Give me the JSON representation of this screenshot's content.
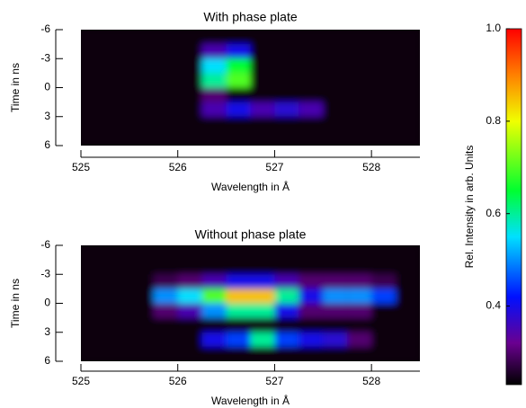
{
  "chart_data": [
    {
      "type": "heatmap",
      "title": "With phase plate",
      "x_label": "Wavelength in Å",
      "y_label": "Time in ns",
      "xlim": [
        525,
        528.5
      ],
      "xticks": [
        525,
        526,
        527,
        528
      ],
      "ylim": [
        -6,
        6
      ],
      "yticks": [
        -6,
        -3,
        0,
        3,
        6
      ],
      "x_bins": [
        525,
        525.25,
        525.5,
        525.75,
        526,
        526.25,
        526.5,
        526.75,
        527,
        527.25,
        527.5,
        527.75,
        528,
        528.25,
        528.5
      ],
      "y_bins": [
        -6,
        -4.5,
        -3,
        -1.5,
        0,
        1.5,
        3,
        4.5,
        6
      ],
      "values": [
        [
          0.24,
          0.24,
          0.24,
          0.24,
          0.24,
          0.24,
          0.24,
          0.24,
          0.24,
          0.24,
          0.24,
          0.24,
          0.24,
          0.24
        ],
        [
          0.24,
          0.24,
          0.24,
          0.24,
          0.24,
          0.35,
          0.4,
          0.24,
          0.24,
          0.24,
          0.24,
          0.24,
          0.24,
          0.24
        ],
        [
          0.24,
          0.24,
          0.24,
          0.24,
          0.24,
          0.55,
          0.65,
          0.24,
          0.24,
          0.24,
          0.24,
          0.24,
          0.24,
          0.24
        ],
        [
          0.24,
          0.24,
          0.24,
          0.24,
          0.24,
          0.6,
          0.7,
          0.24,
          0.24,
          0.24,
          0.24,
          0.24,
          0.24,
          0.24
        ],
        [
          0.24,
          0.24,
          0.24,
          0.24,
          0.24,
          0.3,
          0.24,
          0.24,
          0.24,
          0.24,
          0.24,
          0.24,
          0.24,
          0.24
        ],
        [
          0.24,
          0.24,
          0.24,
          0.24,
          0.24,
          0.35,
          0.4,
          0.35,
          0.38,
          0.35,
          0.24,
          0.24,
          0.24,
          0.24
        ],
        [
          0.24,
          0.24,
          0.24,
          0.24,
          0.24,
          0.24,
          0.24,
          0.24,
          0.24,
          0.24,
          0.24,
          0.24,
          0.24,
          0.24
        ],
        [
          0.24,
          0.24,
          0.24,
          0.24,
          0.24,
          0.24,
          0.24,
          0.24,
          0.24,
          0.24,
          0.24,
          0.24,
          0.24,
          0.24
        ]
      ]
    },
    {
      "type": "heatmap",
      "title": "Without phase plate",
      "x_label": "Wavelength in Å",
      "y_label": "Time in ns",
      "xlim": [
        525,
        528.5
      ],
      "xticks": [
        525,
        526,
        527,
        528
      ],
      "ylim": [
        -6,
        6
      ],
      "yticks": [
        -6,
        -3,
        0,
        3,
        6
      ],
      "x_bins": [
        525,
        525.25,
        525.5,
        525.75,
        526,
        526.25,
        526.5,
        526.75,
        527,
        527.25,
        527.5,
        527.75,
        528,
        528.25,
        528.5
      ],
      "y_bins": [
        -6,
        -4.5,
        -3,
        -1.5,
        0,
        1.5,
        3,
        4.5,
        6
      ],
      "values": [
        [
          0.24,
          0.24,
          0.24,
          0.24,
          0.24,
          0.24,
          0.24,
          0.24,
          0.24,
          0.24,
          0.24,
          0.24,
          0.24,
          0.24
        ],
        [
          0.24,
          0.24,
          0.24,
          0.24,
          0.24,
          0.24,
          0.24,
          0.24,
          0.24,
          0.24,
          0.24,
          0.24,
          0.24,
          0.24
        ],
        [
          0.24,
          0.24,
          0.24,
          0.28,
          0.3,
          0.35,
          0.4,
          0.4,
          0.35,
          0.3,
          0.3,
          0.3,
          0.28,
          0.24
        ],
        [
          0.24,
          0.24,
          0.24,
          0.5,
          0.55,
          0.7,
          0.85,
          0.85,
          0.6,
          0.4,
          0.5,
          0.5,
          0.45,
          0.24
        ],
        [
          0.24,
          0.24,
          0.24,
          0.3,
          0.35,
          0.5,
          0.6,
          0.6,
          0.4,
          0.3,
          0.3,
          0.3,
          0.24,
          0.24
        ],
        [
          0.24,
          0.24,
          0.24,
          0.24,
          0.24,
          0.24,
          0.24,
          0.24,
          0.24,
          0.24,
          0.24,
          0.24,
          0.24,
          0.24
        ],
        [
          0.24,
          0.24,
          0.24,
          0.24,
          0.24,
          0.4,
          0.45,
          0.6,
          0.45,
          0.4,
          0.38,
          0.3,
          0.24,
          0.24
        ],
        [
          0.24,
          0.24,
          0.24,
          0.24,
          0.24,
          0.24,
          0.24,
          0.24,
          0.24,
          0.24,
          0.24,
          0.24,
          0.24,
          0.24
        ]
      ]
    },
    {
      "type": "colorbar",
      "label": "Rel. Intensity in arb. Units",
      "clim": [
        0.23,
        1
      ],
      "ticks": [
        0.4,
        0.6,
        0.8,
        {
          "value": 1,
          "label": "1.0"
        }
      ],
      "colormap": [
        [
          0.23,
          "#000000"
        ],
        [
          0.32,
          "#6a0090"
        ],
        [
          0.42,
          "#0010ff"
        ],
        [
          0.55,
          "#00e0ff"
        ],
        [
          0.65,
          "#00ff30"
        ],
        [
          0.8,
          "#f0ff00"
        ],
        [
          0.9,
          "#ff8000"
        ],
        [
          1,
          "#ff0000"
        ]
      ]
    }
  ]
}
